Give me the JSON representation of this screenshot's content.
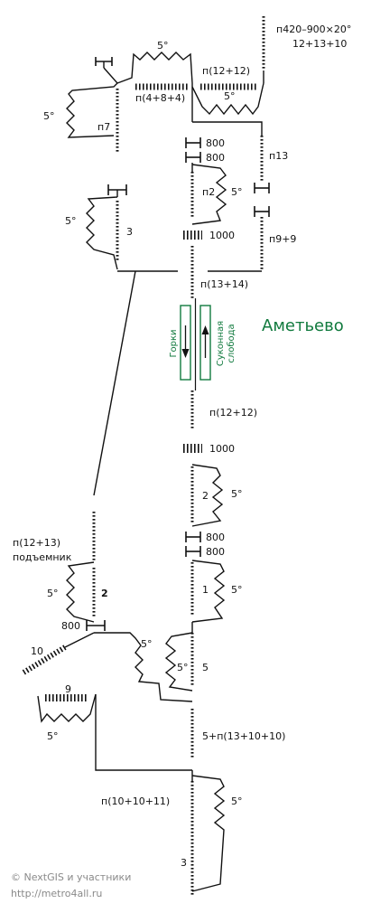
{
  "station_name": "Аметьево",
  "platform": {
    "left_label": "Горки",
    "right_label": "Суконная слобода"
  },
  "labels": {
    "top_right_stair": "п420–900×20°",
    "top_right_stair_2": "12+13+10",
    "s_5deg": "5°",
    "s_p12_12_top": "п(12+12)",
    "s_p4_8_4": "п(4+8+4)",
    "s_p7": "п7",
    "s_800": "800",
    "s_p13": "п13",
    "s_n2": "п2",
    "s_1000": "1000",
    "s_3": "3",
    "s_p9_9": "п9+9",
    "s_p13_14": "п(13+14)",
    "s_p12_12_mid": "п(12+12)",
    "s_2": "2",
    "s_p12_13": "п(12+13)",
    "s_lift": "подъемник",
    "s_1": "1",
    "s_10": "10",
    "s_5": "5",
    "s_9": "9",
    "s_5_p13_10_10": "5+п(13+10+10)",
    "s_p10_10_11": "п(10+10+11)"
  },
  "credits": {
    "line1": "© NextGIS и участники",
    "line2": "http://metro4all.ru"
  },
  "colors": {
    "platform_green": "#117a3e",
    "lines": "#111111",
    "credit_gray": "#8a8a8a"
  }
}
